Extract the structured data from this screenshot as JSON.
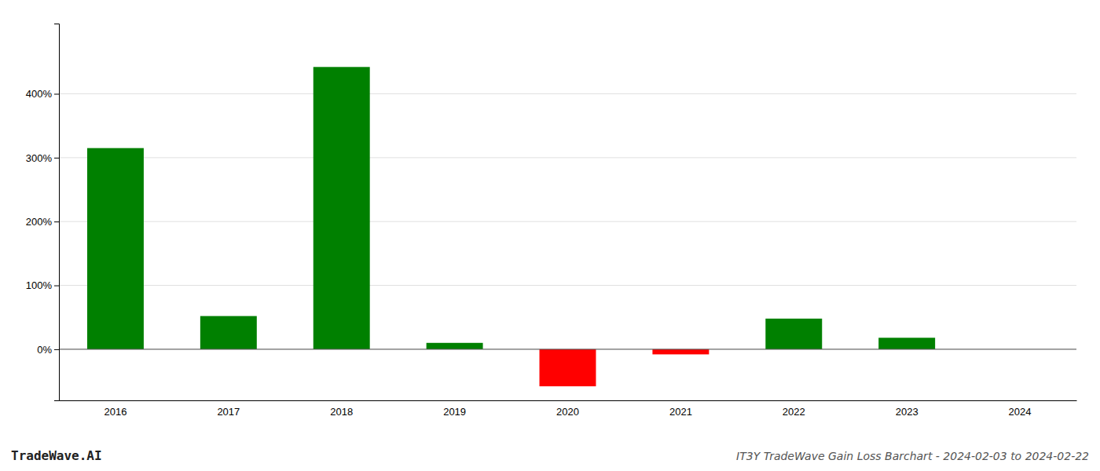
{
  "chart_data": {
    "type": "bar",
    "title": "IT3Y TradeWave Gain Loss Barchart - 2024-02-03 to 2024-02-22",
    "annotations": [
      "TradeWave.AI"
    ],
    "categories": [
      "2016",
      "2017",
      "2018",
      "2019",
      "2020",
      "2021",
      "2022",
      "2023",
      "2024"
    ],
    "values": [
      3.15,
      0.52,
      4.42,
      0.1,
      -0.58,
      -0.08,
      0.48,
      0.18,
      0.0
    ],
    "colors": [
      "#008000",
      "#008000",
      "#008000",
      "#008000",
      "#ff0000",
      "#ff0000",
      "#008000",
      "#008000",
      "#008000"
    ],
    "ylim": [
      -0.8,
      5.1
    ],
    "yticks": [
      {
        "value": 0.0,
        "label": "0%"
      },
      {
        "value": 1.0,
        "label": "100%"
      },
      {
        "value": 2.0,
        "label": "200%"
      },
      {
        "value": 3.0,
        "label": "300%"
      },
      {
        "value": 4.0,
        "label": "400%"
      }
    ],
    "grid": true
  }
}
